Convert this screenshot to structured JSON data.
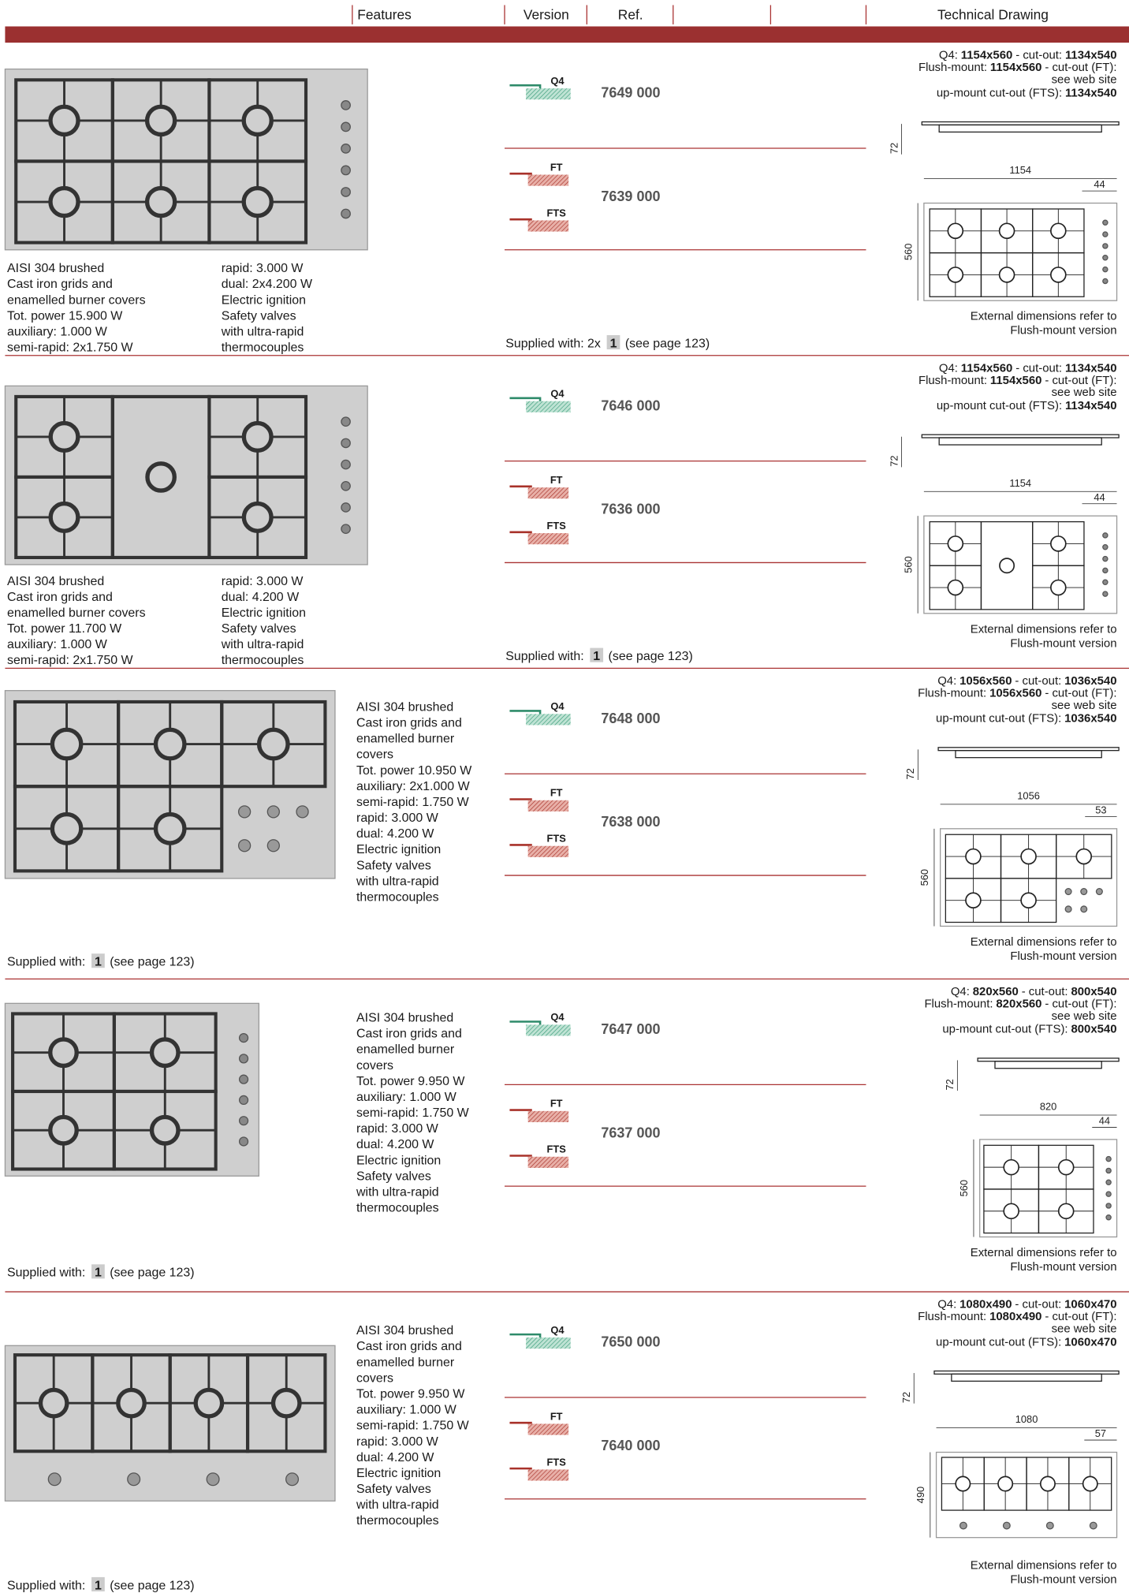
{
  "header": {
    "features": "Features",
    "version": "Version",
    "ref": "Ref.",
    "drawing": "Technical Drawing"
  },
  "rows": [
    {
      "features": [
        [
          "AISI 304 brushed",
          "Cast iron grids and",
          "enamelled burner covers",
          "Tot. power 15.900 W",
          "auxiliary: 1.000 W",
          "semi-rapid: 2x1.750 W"
        ],
        [
          "rapid: 3.000 W",
          "dual: 2x4.200 W",
          "Electric ignition",
          "Safety valves",
          "with ultra-rapid",
          "thermocouples"
        ]
      ],
      "versions": [
        "Q4",
        "FT",
        "FTS"
      ],
      "refs": [
        "7649 000",
        "7639 000"
      ],
      "supplied": {
        "text": "Supplied with: 2x",
        "badge": "1",
        "note": "(see page 123)"
      },
      "drawing": {
        "q4": [
          "Q4:",
          "1154x560",
          "- cut-out:",
          "1134x540"
        ],
        "flush": [
          "Flush-mount:",
          "1154x560",
          "- cut-out (FT):"
        ],
        "web": "see web site",
        "upmount": [
          "up-mount cut-out (FTS):",
          "1134x540"
        ],
        "height": 72,
        "width": 1154,
        "offset": 44,
        "depth": 560,
        "note": [
          "External dimensions refer to",
          "Flush-mount version"
        ]
      }
    },
    {
      "features": [
        [
          "AISI 304 brushed",
          "Cast iron grids and",
          "enamelled burner covers",
          "Tot. power 11.700 W",
          "auxiliary: 1.000 W",
          "semi-rapid: 2x1.750 W"
        ],
        [
          "rapid: 3.000 W",
          "dual: 4.200 W",
          "Electric ignition",
          "Safety valves",
          "with ultra-rapid",
          "thermocouples"
        ]
      ],
      "versions": [
        "Q4",
        "FT",
        "FTS"
      ],
      "refs": [
        "7646 000",
        "7636 000"
      ],
      "supplied": {
        "text": "Supplied with:",
        "badge": "1",
        "note": "(see page 123)"
      },
      "drawing": {
        "q4": [
          "Q4:",
          "1154x560",
          "- cut-out:",
          "1134x540"
        ],
        "flush": [
          "Flush-mount:",
          "1154x560",
          "- cut-out (FT):"
        ],
        "web": "see web site",
        "upmount": [
          "up-mount cut-out (FTS):",
          "1134x540"
        ],
        "height": 72,
        "width": 1154,
        "offset": 44,
        "depth": 560,
        "note": [
          "External dimensions refer to",
          "Flush-mount version"
        ]
      }
    },
    {
      "features": [
        "AISI 304 brushed",
        "Cast iron grids and",
        "enamelled burner",
        "covers",
        "Tot. power 10.950 W",
        "auxiliary: 2x1.000 W",
        "semi-rapid: 1.750 W",
        "rapid: 3.000 W",
        "dual: 4.200 W",
        "Electric ignition",
        "Safety valves",
        "with ultra-rapid",
        "thermocouples"
      ],
      "versions": [
        "Q4",
        "FT",
        "FTS"
      ],
      "refs": [
        "7648 000",
        "7638 000"
      ],
      "supplied": {
        "text": "Supplied with:",
        "badge": "1",
        "note": "(see page 123)"
      },
      "drawing": {
        "q4": [
          "Q4:",
          "1056x560",
          "- cut-out:",
          "1036x540"
        ],
        "flush": [
          "Flush-mount:",
          "1056x560",
          "- cut-out (FT):"
        ],
        "web": "see web site",
        "upmount": [
          "up-mount cut-out (FTS):",
          "1036x540"
        ],
        "height": 72,
        "width": 1056,
        "offset": 53,
        "depth": 560,
        "note": [
          "External dimensions refer to",
          "Flush-mount version"
        ]
      }
    },
    {
      "features": [
        "AISI 304 brushed",
        "Cast iron grids and",
        "enamelled burner",
        "covers",
        "Tot. power 9.950 W",
        "auxiliary: 1.000 W",
        "semi-rapid: 1.750 W",
        "rapid: 3.000 W",
        "dual: 4.200 W",
        "Electric ignition",
        "Safety valves",
        "with ultra-rapid",
        "thermocouples"
      ],
      "versions": [
        "Q4",
        "FT",
        "FTS"
      ],
      "refs": [
        "7647 000",
        "7637 000"
      ],
      "supplied": {
        "text": "Supplied with:",
        "badge": "1",
        "note": "(see page 123)"
      },
      "drawing": {
        "q4": [
          "Q4:",
          "820x560",
          "- cut-out:",
          "800x540"
        ],
        "flush": [
          "Flush-mount:",
          "820x560",
          "- cut-out (FT):"
        ],
        "web": "see web site",
        "upmount": [
          "up-mount cut-out (FTS):",
          "800x540"
        ],
        "height": 72,
        "width": 820,
        "offset": 44,
        "depth": 560,
        "note": [
          "External dimensions refer to",
          "Flush-mount version"
        ]
      }
    },
    {
      "features": [
        "AISI 304 brushed",
        "Cast iron grids and",
        "enamelled burner",
        "covers",
        "Tot. power 9.950 W",
        "auxiliary: 1.000 W",
        "semi-rapid: 1.750 W",
        "rapid: 3.000 W",
        "dual: 4.200 W",
        "Electric ignition",
        "Safety valves",
        "with ultra-rapid",
        "thermocouples"
      ],
      "versions": [
        "Q4",
        "FT",
        "FTS"
      ],
      "refs": [
        "7650 000",
        "7640 000"
      ],
      "supplied": {
        "text": "Supplied with:",
        "badge": "1",
        "note": "(see page 123)"
      },
      "drawing": {
        "q4": [
          "Q4:",
          "1080x490",
          "- cut-out:",
          "1060x470"
        ],
        "flush": [
          "Flush-mount:",
          "1080x490",
          "- cut-out (FT):"
        ],
        "web": "see web site",
        "upmount": [
          "up-mount cut-out (FTS):",
          "1060x470"
        ],
        "height": 72,
        "width": 1080,
        "offset": 57,
        "depth": 490,
        "note": [
          "External dimensions refer to",
          "Flush-mount version"
        ]
      }
    }
  ]
}
